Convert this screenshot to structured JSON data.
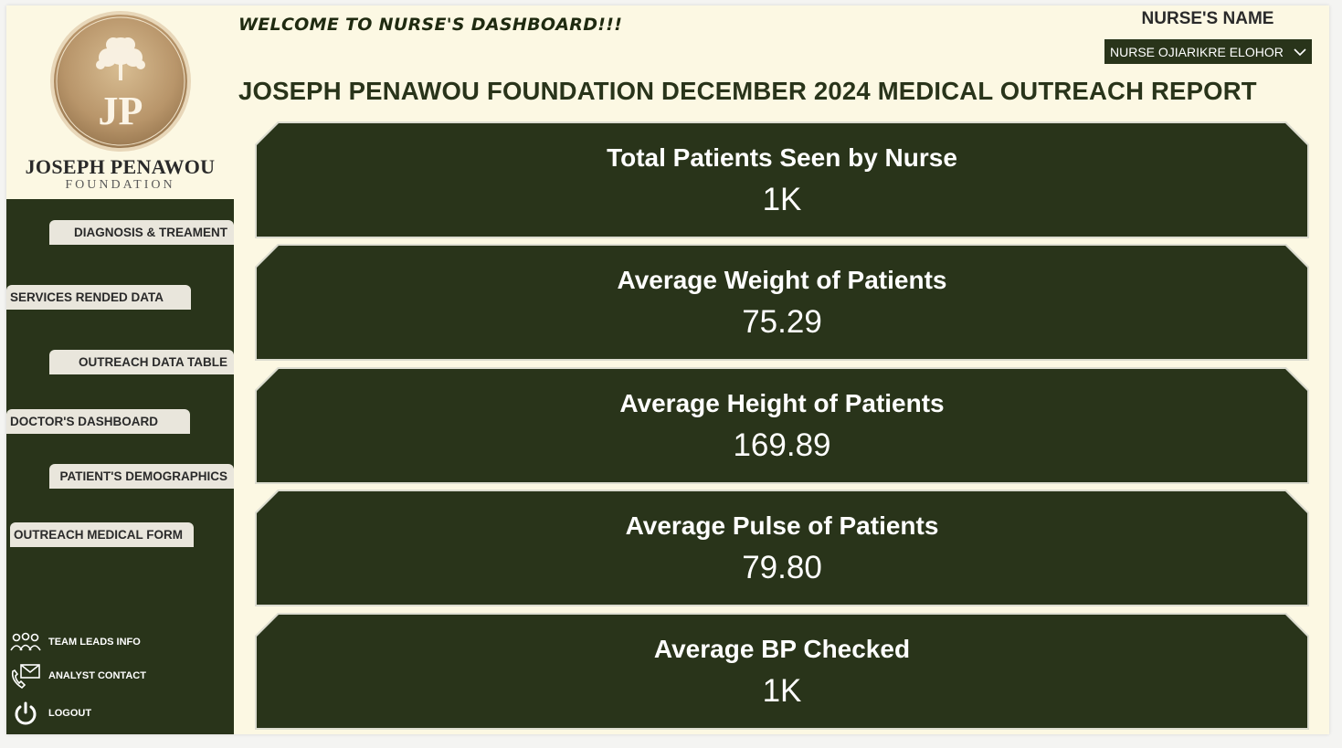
{
  "header": {
    "welcome": "WELCOME TO NURSE'S DASHBOARD!!!",
    "report_title": "JOSEPH PENAWOU FOUNDATION DECEMBER 2024 MEDICAL OUTREACH REPORT",
    "nurse_label": "NURSE'S NAME",
    "nurse_selected": "NURSE OJIARIKRE ELOHOR"
  },
  "logo": {
    "initials": "JP",
    "name": "JOSEPH PENAWOU",
    "sub": "FOUNDATION"
  },
  "nav": [
    {
      "label": "DIAGNOSIS & TREAMENT"
    },
    {
      "label": "SERVICES RENDED DATA"
    },
    {
      "label": "OUTREACH DATA TABLE"
    },
    {
      "label": "DOCTOR'S DASHBOARD"
    },
    {
      "label": "PATIENT'S DEMOGRAPHICS"
    },
    {
      "label": "OUTREACH MEDICAL FORM"
    }
  ],
  "bottom_links": [
    {
      "label": "TEAM LEADS INFO",
      "icon": "team-icon"
    },
    {
      "label": "ANALYST CONTACT",
      "icon": "phone-mail-icon"
    },
    {
      "label": "LOGOUT",
      "icon": "power-icon"
    }
  ],
  "cards": [
    {
      "label": "Total Patients Seen by Nurse",
      "value": "1K"
    },
    {
      "label": "Average Weight of Patients",
      "value": "75.29"
    },
    {
      "label": "Average Height of Patients",
      "value": "169.89"
    },
    {
      "label": "Average Pulse of Patients",
      "value": "79.80"
    },
    {
      "label": "Average BP Checked",
      "value": "1K"
    }
  ],
  "colors": {
    "dark_green": "#29341a",
    "cream": "#fcf8e3",
    "gold": "#c9a877"
  }
}
